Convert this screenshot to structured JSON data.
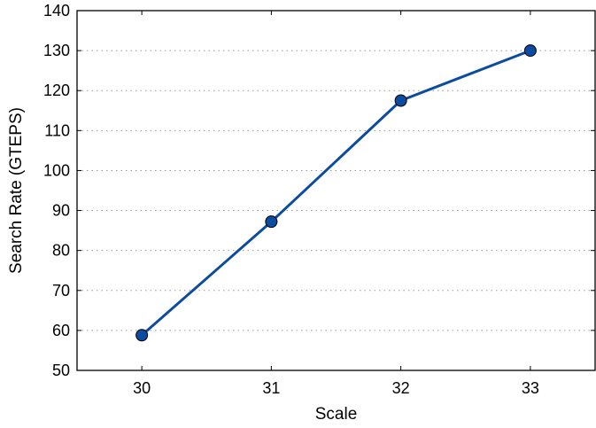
{
  "chart_data": {
    "type": "line",
    "title": "",
    "xlabel": "Scale",
    "ylabel": "Search Rate (GTEPS)",
    "xlim": [
      29.5,
      33.5
    ],
    "ylim": [
      50,
      140
    ],
    "x_ticks": [
      30,
      31,
      32,
      33
    ],
    "y_ticks": [
      50,
      60,
      70,
      80,
      90,
      100,
      110,
      120,
      130,
      140
    ],
    "grid": "horizontal dotted",
    "series": [
      {
        "x": [
          30,
          31,
          32,
          33
        ],
        "y": [
          58.8,
          87.2,
          117.5,
          130.0
        ],
        "color": "#0b4ba0",
        "marker": "circle"
      }
    ]
  }
}
